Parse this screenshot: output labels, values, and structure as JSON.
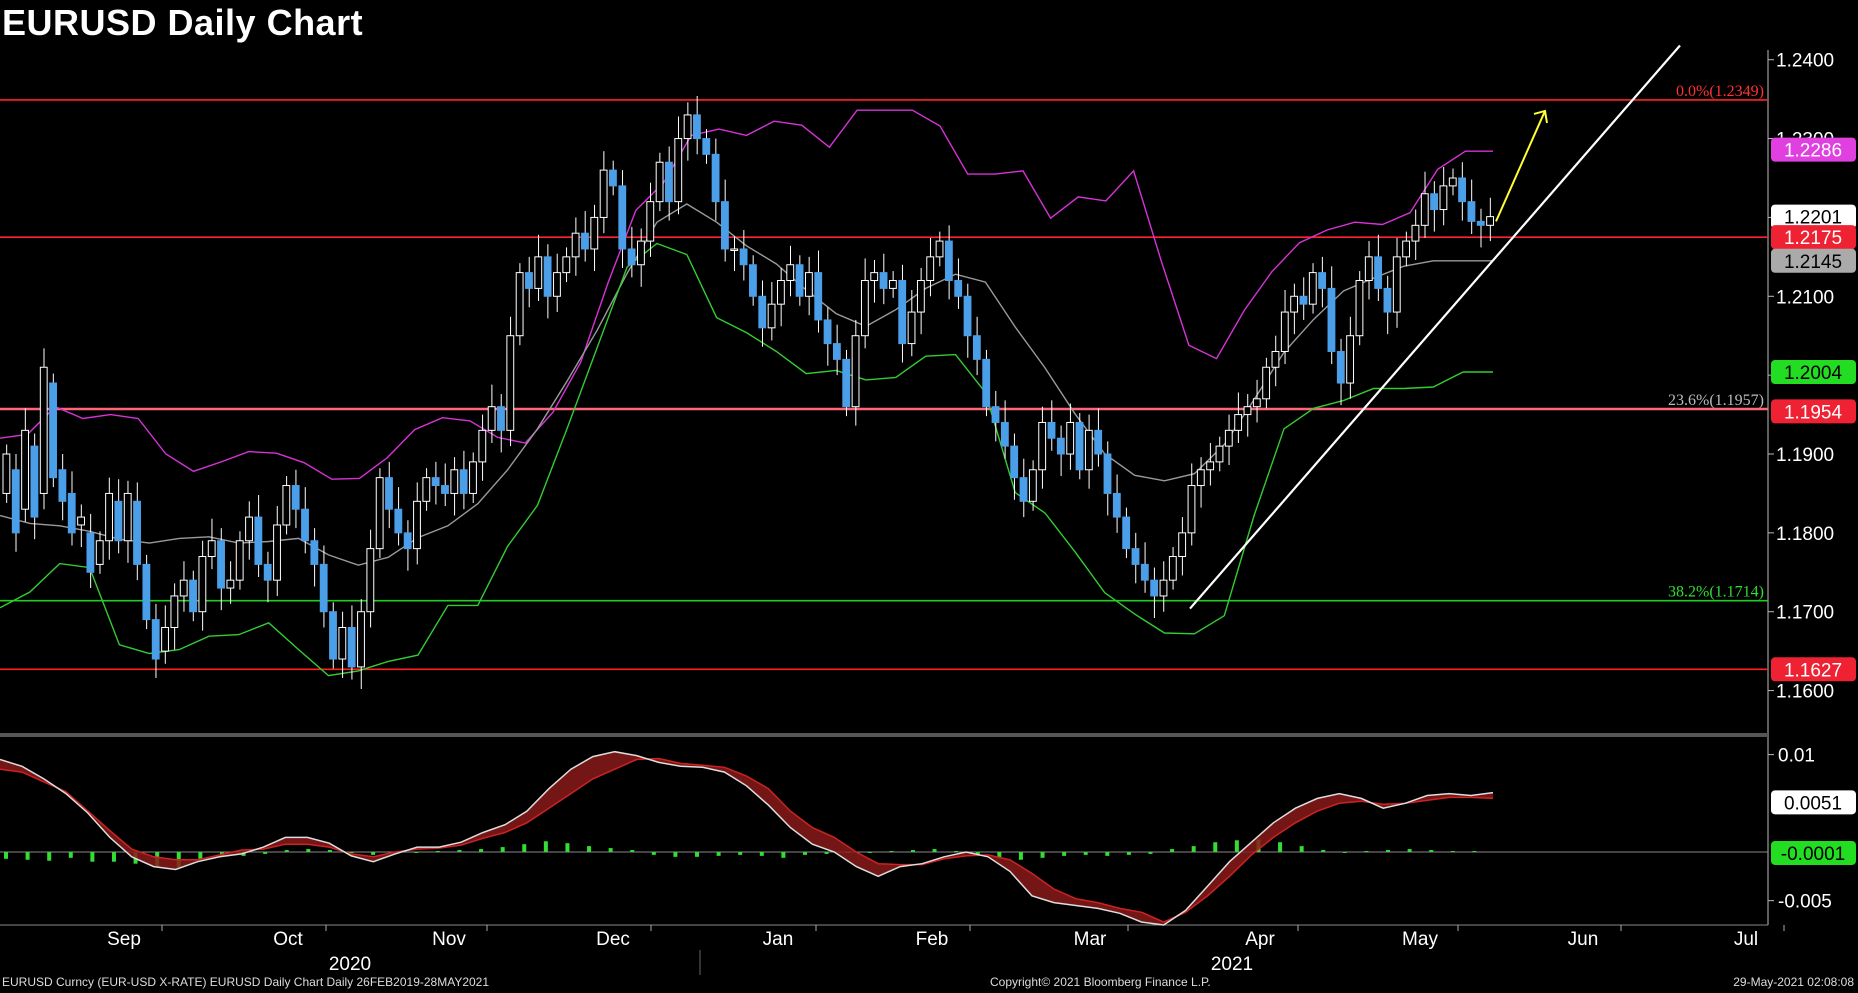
{
  "title": "EURUSD Daily Chart",
  "footer": {
    "left": "EURUSD Curncy (EUR-USD X-RATE) EURUSD Daily Chart  Daily 26FEB2019-28MAY2021",
    "center": "Copyright© 2021 Bloomberg Finance L.P.",
    "right": "29-May-2021 02:08:08"
  },
  "colors": {
    "background": "#000000",
    "bull_candle": "#ffffff",
    "bear_candle": "#4a9fe8",
    "bollinger_upper": "#d633d6",
    "bollinger_middle": "#9a9a9a",
    "bollinger_lower": "#33cc33",
    "resistance": "#ff2222",
    "support": "#22cc22",
    "trendline": "#ffffff",
    "arrow": "#ffff33",
    "macd_hist": "#33dd33"
  },
  "chart_data": [
    {
      "type": "candlestick",
      "name": "EURUSD daily price",
      "ylim": [
        1.155,
        1.2425
      ],
      "y_ticks": [
        "1.2400",
        "1.2300",
        "1.2200",
        "1.2100",
        "1.2000",
        "1.1900",
        "1.1800",
        "1.1700",
        "1.1600"
      ],
      "x_month_labels": [
        "Sep",
        "Oct",
        "Nov",
        "Dec",
        "Jan",
        "Feb",
        "Mar",
        "Apr",
        "May",
        "Jun",
        "Jul"
      ],
      "x_year_labels": [
        "2020",
        "2021"
      ],
      "price_tags": [
        {
          "value": 1.2286,
          "label": "1.2286",
          "bg": "#e040e0",
          "fg": "#ffffff"
        },
        {
          "value": 1.2201,
          "label": "1.2201",
          "bg": "#ffffff",
          "fg": "#000000"
        },
        {
          "value": 1.2175,
          "label": "1.2175",
          "bg": "#ee2233",
          "fg": "#ffffff"
        },
        {
          "value": 1.2145,
          "label": "1.2145",
          "bg": "#aaaaaa",
          "fg": "#000000"
        },
        {
          "value": 1.2004,
          "label": "1.2004",
          "bg": "#22dd22",
          "fg": "#000000"
        },
        {
          "value": 1.1954,
          "label": "1.1954",
          "bg": "#ee2233",
          "fg": "#ffffff"
        },
        {
          "value": 1.1627,
          "label": "1.1627",
          "bg": "#ee2233",
          "fg": "#ffffff"
        }
      ],
      "horizontal_lines": [
        {
          "value": 1.2349,
          "color": "#ff2222",
          "label": "0.0%(1.2349)",
          "label_color": "#ff3333"
        },
        {
          "value": 1.2175,
          "color": "#ff2233",
          "label": "",
          "label_color": ""
        },
        {
          "value": 1.1957,
          "color": "#ff6677",
          "label": "23.6%(1.1957)",
          "label_color": "#bbbbbb"
        },
        {
          "value": 1.1714,
          "color": "#22cc22",
          "label": "38.2%(1.1714)",
          "label_color": "#33dd33"
        },
        {
          "value": 1.1627,
          "color": "#ff2222",
          "label": "",
          "label_color": ""
        }
      ],
      "trendline": {
        "from": [
          "2021-03-31",
          1.1704
        ],
        "to": [
          "2021-06-30",
          1.2418
        ]
      },
      "arrow": {
        "from": [
          "2021-05-27",
          1.2195
        ],
        "to": [
          "2021-06-07",
          1.2335
        ]
      },
      "price_path": [
        [
          1.185,
          1.19
        ],
        [
          1.188,
          1.18
        ],
        [
          1.183,
          1.193
        ],
        [
          1.191,
          1.182
        ],
        [
          1.185,
          1.201
        ],
        [
          1.199,
          1.187
        ],
        [
          1.188,
          1.184
        ],
        [
          1.185,
          1.18
        ],
        [
          1.181,
          1.182
        ],
        [
          1.18,
          1.175
        ],
        [
          1.176,
          1.179
        ],
        [
          1.179,
          1.185
        ],
        [
          1.184,
          1.179
        ],
        [
          1.179,
          1.185
        ],
        [
          1.184,
          1.176
        ],
        [
          1.176,
          1.169
        ],
        [
          1.169,
          1.164
        ],
        [
          1.165,
          1.168
        ],
        [
          1.168,
          1.172
        ],
        [
          1.172,
          1.174
        ],
        [
          1.174,
          1.17
        ],
        [
          1.17,
          1.177
        ],
        [
          1.177,
          1.179
        ],
        [
          1.179,
          1.173
        ],
        [
          1.173,
          1.174
        ],
        [
          1.174,
          1.179
        ],
        [
          1.179,
          1.182
        ],
        [
          1.182,
          1.176
        ],
        [
          1.176,
          1.174
        ],
        [
          1.174,
          1.181
        ],
        [
          1.181,
          1.186
        ],
        [
          1.186,
          1.183
        ],
        [
          1.183,
          1.179
        ],
        [
          1.179,
          1.176
        ],
        [
          1.176,
          1.17
        ],
        [
          1.17,
          1.164
        ],
        [
          1.164,
          1.168
        ],
        [
          1.168,
          1.163
        ],
        [
          1.163,
          1.17
        ],
        [
          1.17,
          1.178
        ],
        [
          1.178,
          1.187
        ],
        [
          1.187,
          1.183
        ],
        [
          1.183,
          1.18
        ],
        [
          1.18,
          1.178
        ],
        [
          1.178,
          1.184
        ],
        [
          1.184,
          1.187
        ],
        [
          1.187,
          1.186
        ],
        [
          1.186,
          1.185
        ],
        [
          1.185,
          1.188
        ],
        [
          1.188,
          1.185
        ],
        [
          1.185,
          1.189
        ],
        [
          1.189,
          1.193
        ],
        [
          1.193,
          1.196
        ],
        [
          1.196,
          1.193
        ],
        [
          1.193,
          1.205
        ],
        [
          1.205,
          1.213
        ],
        [
          1.213,
          1.211
        ],
        [
          1.211,
          1.215
        ],
        [
          1.215,
          1.21
        ],
        [
          1.21,
          1.213
        ],
        [
          1.213,
          1.215
        ],
        [
          1.215,
          1.218
        ],
        [
          1.218,
          1.216
        ],
        [
          1.216,
          1.22
        ],
        [
          1.22,
          1.226
        ],
        [
          1.226,
          1.224
        ],
        [
          1.224,
          1.216
        ],
        [
          1.216,
          1.214
        ],
        [
          1.214,
          1.217
        ],
        [
          1.217,
          1.222
        ],
        [
          1.222,
          1.227
        ],
        [
          1.227,
          1.222
        ],
        [
          1.222,
          1.23
        ],
        [
          1.23,
          1.233
        ],
        [
          1.233,
          1.23
        ],
        [
          1.23,
          1.228
        ],
        [
          1.228,
          1.222
        ],
        [
          1.222,
          1.216
        ],
        [
          1.216,
          1.216
        ],
        [
          1.216,
          1.214
        ],
        [
          1.214,
          1.21
        ],
        [
          1.21,
          1.206
        ],
        [
          1.206,
          1.209
        ],
        [
          1.209,
          1.212
        ],
        [
          1.212,
          1.214
        ],
        [
          1.214,
          1.21
        ],
        [
          1.21,
          1.213
        ],
        [
          1.213,
          1.207
        ],
        [
          1.207,
          1.204
        ],
        [
          1.204,
          1.202
        ],
        [
          1.202,
          1.196
        ],
        [
          1.196,
          1.205
        ],
        [
          1.205,
          1.212
        ],
        [
          1.212,
          1.213
        ],
        [
          1.213,
          1.211
        ],
        [
          1.211,
          1.212
        ],
        [
          1.212,
          1.204
        ],
        [
          1.204,
          1.208
        ],
        [
          1.208,
          1.212
        ],
        [
          1.212,
          1.215
        ],
        [
          1.215,
          1.217
        ],
        [
          1.217,
          1.212
        ],
        [
          1.212,
          1.21
        ],
        [
          1.21,
          1.205
        ],
        [
          1.205,
          1.202
        ],
        [
          1.202,
          1.196
        ],
        [
          1.196,
          1.194
        ],
        [
          1.194,
          1.191
        ],
        [
          1.191,
          1.187
        ],
        [
          1.187,
          1.184
        ],
        [
          1.184,
          1.188
        ],
        [
          1.188,
          1.194
        ],
        [
          1.194,
          1.192
        ],
        [
          1.192,
          1.19
        ],
        [
          1.19,
          1.194
        ],
        [
          1.194,
          1.188
        ],
        [
          1.188,
          1.193
        ],
        [
          1.193,
          1.19
        ],
        [
          1.19,
          1.185
        ],
        [
          1.185,
          1.182
        ],
        [
          1.182,
          1.178
        ],
        [
          1.178,
          1.176
        ],
        [
          1.176,
          1.174
        ],
        [
          1.174,
          1.172
        ],
        [
          1.172,
          1.174
        ],
        [
          1.174,
          1.177
        ],
        [
          1.177,
          1.18
        ],
        [
          1.18,
          1.186
        ],
        [
          1.186,
          1.188
        ],
        [
          1.188,
          1.189
        ],
        [
          1.189,
          1.191
        ],
        [
          1.191,
          1.193
        ],
        [
          1.193,
          1.195
        ],
        [
          1.195,
          1.196
        ],
        [
          1.196,
          1.197
        ],
        [
          1.197,
          1.201
        ],
        [
          1.201,
          1.203
        ],
        [
          1.203,
          1.208
        ],
        [
          1.208,
          1.21
        ],
        [
          1.21,
          1.209
        ],
        [
          1.209,
          1.213
        ],
        [
          1.213,
          1.211
        ],
        [
          1.211,
          1.203
        ],
        [
          1.203,
          1.199
        ],
        [
          1.199,
          1.205
        ],
        [
          1.205,
          1.212
        ],
        [
          1.212,
          1.215
        ],
        [
          1.215,
          1.211
        ],
        [
          1.211,
          1.208
        ],
        [
          1.208,
          1.215
        ],
        [
          1.215,
          1.217
        ],
        [
          1.217,
          1.219
        ],
        [
          1.219,
          1.223
        ],
        [
          1.223,
          1.221
        ],
        [
          1.221,
          1.224
        ],
        [
          1.224,
          1.225
        ],
        [
          1.225,
          1.222
        ],
        [
          1.222,
          1.2195
        ],
        [
          1.2195,
          1.219
        ],
        [
          1.219,
          1.2201
        ]
      ],
      "bollinger_upper": [
        1.192,
        1.1925,
        1.196,
        1.1945,
        1.195,
        1.1945,
        1.19,
        1.1878,
        1.189,
        1.1903,
        1.1901,
        1.1889,
        1.1868,
        1.1869,
        1.1895,
        1.1931,
        1.1946,
        1.1942,
        1.1921,
        1.1914,
        1.1953,
        1.2016,
        1.2118,
        1.2209,
        1.2244,
        1.2304,
        1.2312,
        1.2304,
        1.2322,
        1.2317,
        1.2289,
        1.2336,
        1.2336,
        1.2336,
        1.2316,
        1.2255,
        1.2255,
        1.2259,
        1.2199,
        1.2226,
        1.2221,
        1.2259,
        1.2145,
        1.2038,
        1.2021,
        1.2082,
        1.2131,
        1.2168,
        1.2184,
        1.2194,
        1.2191,
        1.2206,
        1.2261,
        1.2284,
        1.2284
      ],
      "bollinger_mid": [
        1.1822,
        1.1812,
        1.1809,
        1.1802,
        1.1792,
        1.1787,
        1.1793,
        1.1795,
        1.1787,
        1.1789,
        1.1793,
        1.1772,
        1.1759,
        1.1769,
        1.1794,
        1.1809,
        1.1837,
        1.188,
        1.1932,
        1.1993,
        1.2057,
        1.2129,
        1.2194,
        1.2217,
        1.2194,
        1.2164,
        1.2141,
        1.2108,
        1.2078,
        1.2062,
        1.2083,
        1.211,
        1.2128,
        1.2118,
        1.2061,
        1.2009,
        1.1951,
        1.19,
        1.1873,
        1.1866,
        1.1875,
        1.1912,
        1.1969,
        1.2029,
        1.2071,
        1.2107,
        1.2123,
        1.2138,
        1.2145,
        1.2145,
        1.2145
      ],
      "bollinger_lower": [
        1.1705,
        1.1725,
        1.1761,
        1.1756,
        1.1658,
        1.1647,
        1.1652,
        1.1669,
        1.1671,
        1.1686,
        1.1652,
        1.1619,
        1.1625,
        1.1637,
        1.1645,
        1.1708,
        1.1708,
        1.1783,
        1.1835,
        1.1933,
        1.2035,
        1.2137,
        1.2167,
        1.2153,
        1.2073,
        1.2054,
        1.203,
        1.2002,
        1.2006,
        1.1994,
        1.1997,
        1.2024,
        1.2026,
        1.1978,
        1.1851,
        1.1825,
        1.1776,
        1.1724,
        1.1697,
        1.1673,
        1.1672,
        1.1695,
        1.1822,
        1.1932,
        1.1958,
        1.1968,
        1.1983,
        1.1983,
        1.1985,
        1.2004,
        1.2004
      ]
    },
    {
      "type": "line",
      "name": "MACD",
      "ylim": [
        -0.0075,
        0.0115
      ],
      "y_ticks": [
        "0.01",
        "-0.005"
      ],
      "price_tags": [
        {
          "value": 0.0051,
          "label": "0.0051",
          "bg": "#ffffff",
          "fg": "#000000"
        },
        {
          "value": -0.0001,
          "label": "-0.0001",
          "bg": "#22dd22",
          "fg": "#000000"
        }
      ],
      "macd": [
        0.0095,
        0.0088,
        0.0075,
        0.006,
        0.004,
        0.0015,
        -0.0005,
        -0.0015,
        -0.0018,
        -0.001,
        -0.0005,
        -0.0002,
        0.0005,
        0.0015,
        0.0015,
        0.0009,
        -0.0004,
        -0.001,
        -0.0002,
        0.0005,
        0.0005,
        0.001,
        0.002,
        0.0028,
        0.0042,
        0.0065,
        0.0085,
        0.0098,
        0.0103,
        0.0099,
        0.0092,
        0.0088,
        0.0087,
        0.0082,
        0.0068,
        0.0048,
        0.0025,
        0.0008,
        0.0,
        -0.0015,
        -0.0025,
        -0.0015,
        -0.0012,
        -0.0005,
        0.0,
        -0.0005,
        -0.002,
        -0.0045,
        -0.0052,
        -0.0055,
        -0.0058,
        -0.0063,
        -0.0072,
        -0.0075,
        -0.006,
        -0.0035,
        -0.001,
        0.001,
        0.003,
        0.0045,
        0.0055,
        0.006,
        0.0055,
        0.0045,
        0.005,
        0.0058,
        0.006,
        0.0058,
        0.0061
      ],
      "signal": [
        0.0085,
        0.0082,
        0.0072,
        0.0062,
        0.0042,
        0.0022,
        0.0003,
        -0.0005,
        -0.0008,
        -0.0008,
        -0.0003,
        0.0002,
        0.0003,
        0.0008,
        0.0008,
        0.0005,
        -0.0002,
        -0.0005,
        0.0,
        0.0003,
        0.0004,
        0.0007,
        0.0014,
        0.002,
        0.003,
        0.0045,
        0.006,
        0.0075,
        0.0085,
        0.0095,
        0.0096,
        0.0091,
        0.0089,
        0.0087,
        0.0078,
        0.0065,
        0.0042,
        0.0025,
        0.0015,
        0.0,
        -0.0012,
        -0.0013,
        -0.0013,
        -0.0007,
        -0.0004,
        -0.0003,
        -0.0008,
        -0.0022,
        -0.0038,
        -0.0048,
        -0.0052,
        -0.0058,
        -0.0062,
        -0.0072,
        -0.0062,
        -0.0045,
        -0.0025,
        -0.0003,
        0.0015,
        0.003,
        0.0042,
        0.005,
        0.0052,
        0.0049,
        0.005,
        0.0053,
        0.0056,
        0.0056,
        0.0055
      ],
      "histogram": [
        -0.0007,
        -0.0008,
        -0.0009,
        -0.0006,
        -0.001,
        -0.001,
        -0.0012,
        -0.0015,
        -0.0016,
        -0.0007,
        -0.0004,
        -0.0004,
        -0.0002,
        0.0002,
        0.0003,
        0.0002,
        -0.0001,
        -0.0003,
        -0.0002,
        -0.0001,
        0.0001,
        0.0002,
        0.0003,
        0.0005,
        0.0008,
        0.0011,
        0.0009,
        0.0006,
        0.0004,
        0.0002,
        -0.0003,
        -0.0005,
        -0.0005,
        -0.0004,
        -0.0003,
        -0.0004,
        -0.0006,
        -0.0003,
        -0.0002,
        -0.0001,
        0.0,
        0.0001,
        0.0002,
        0.0003,
        0.0001,
        -0.0003,
        -0.0006,
        -0.0008,
        -0.0006,
        -0.0004,
        -0.0003,
        -0.0004,
        -0.0003,
        -0.0002,
        0.0003,
        0.0006,
        0.001,
        0.0012,
        0.0013,
        0.001,
        0.0006,
        0.0002,
        0.0,
        0.0001,
        0.0002,
        0.0003,
        0.0002,
        0.0001,
        0.0001
      ]
    }
  ]
}
